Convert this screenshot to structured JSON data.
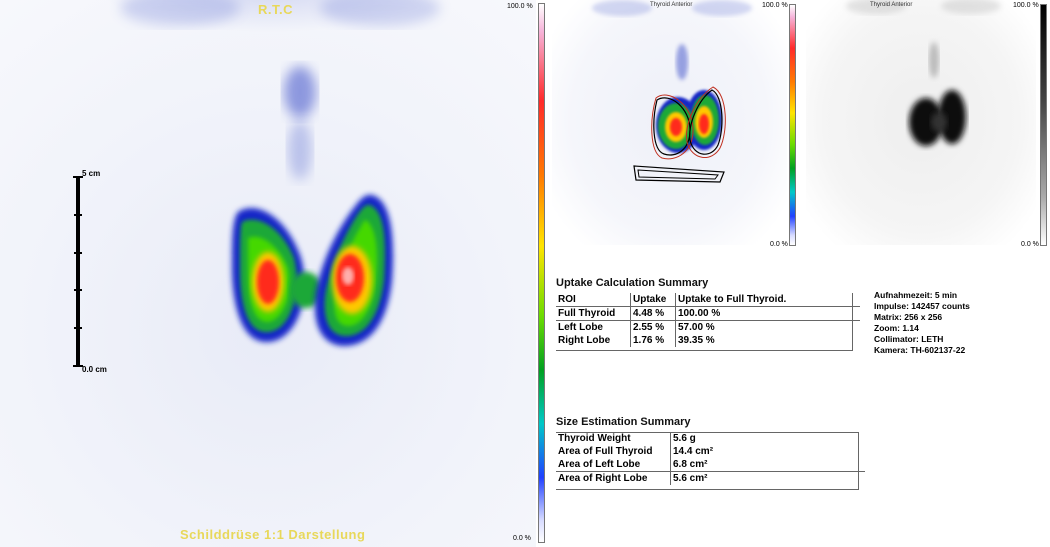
{
  "main_image": {
    "top_label": "R.T.C",
    "bottom_label": "Schilddrüse 1:1 Darstellung",
    "scale": {
      "top_label": "5 cm",
      "bottom_label": "0.0 cm"
    }
  },
  "colorbar_main": {
    "top_label": "100.0 %",
    "bottom_label": "0.0 %"
  },
  "thumbnails": {
    "color": {
      "title": "Thyroid Anterior",
      "colorbar_top": "100.0 %",
      "colorbar_bottom": "0.0 %"
    },
    "gray": {
      "title": "Thyroid Anterior",
      "colorbar_top": "100.0 %",
      "colorbar_bottom": "0.0 %"
    }
  },
  "uptake": {
    "title": "Uptake Calculation Summary",
    "headers": [
      "ROI",
      "Uptake",
      "Uptake to Full Thyroid."
    ],
    "rows": [
      [
        "Full Thyroid",
        "4.48 %",
        "100.00 %"
      ],
      [
        "Left Lobe",
        "2.55 %",
        "57.00 %"
      ],
      [
        "Right Lobe",
        "1.76 %",
        "39.35 %"
      ]
    ]
  },
  "acquisition": {
    "lines": [
      "Aufnahmezeit: 5 min",
      "Impulse:  142457 counts",
      "Matrix: 256 x 256",
      "Zoom: 1.14",
      "Collimator: LETH",
      "Kamera: TH-602137-22"
    ]
  },
  "size": {
    "title": "Size Estimation Summary",
    "rows": [
      [
        "Thyroid Weight",
        "5.6 g"
      ],
      [
        "Area of Full Thyroid",
        "14.4 cm²"
      ],
      [
        "Area of Left Lobe",
        "6.8 cm²"
      ],
      [
        "Area of Right Lobe",
        "5.6 cm²"
      ]
    ]
  },
  "colors": {
    "caption_yellow": "#e8d85a",
    "hot_red": "#ff2a1a",
    "mid_green": "#2ad000",
    "edge_blue": "#1020d0"
  }
}
